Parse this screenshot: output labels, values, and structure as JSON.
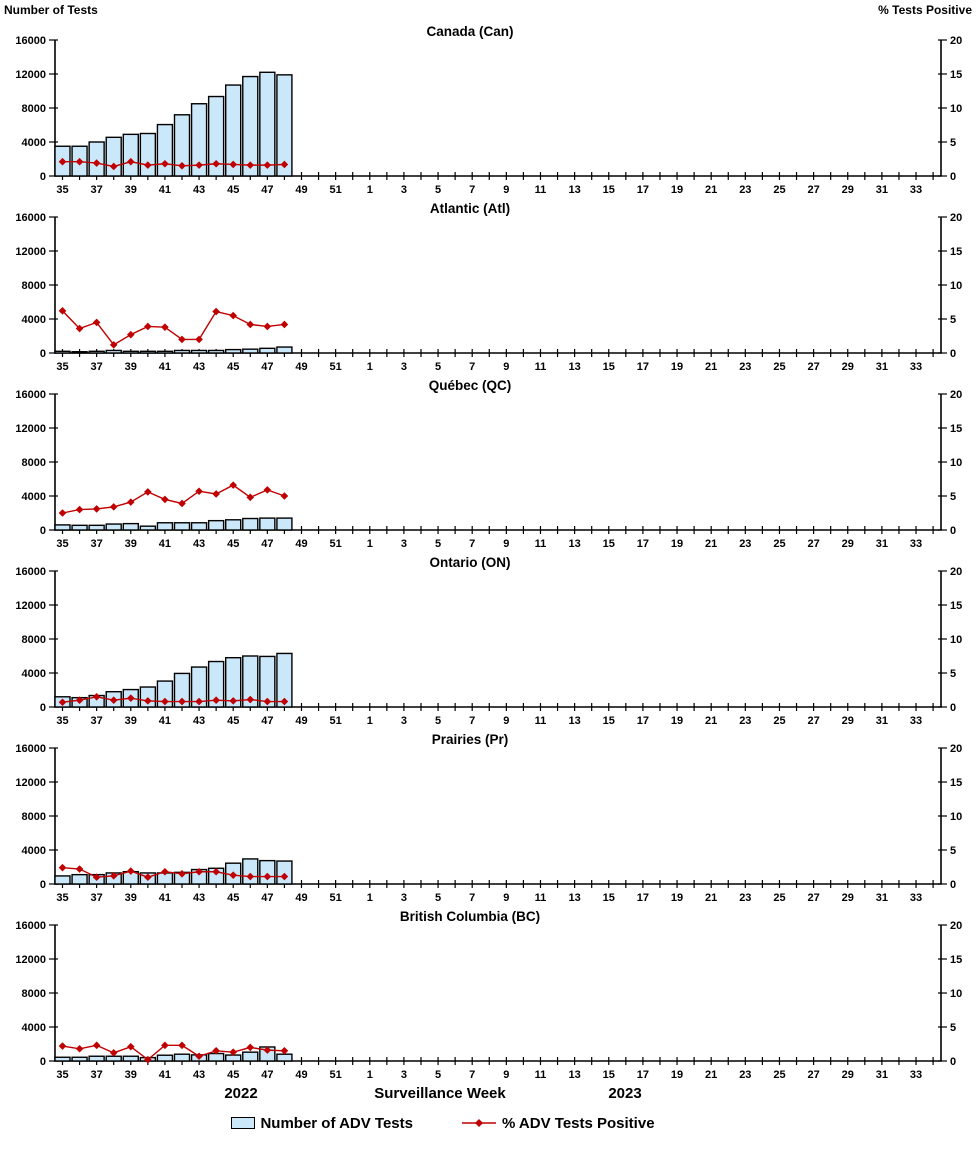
{
  "page": {
    "left_axis_title": "Number of Tests",
    "right_axis_title": "% Tests Positive",
    "x_axis_title": "Surveillance Week",
    "year_left": "2022",
    "year_right": "2023",
    "legend": {
      "bar_label": "Number of ADV Tests",
      "line_label": "% ADV Tests Positive"
    },
    "colors": {
      "bar_fill": "#CBE7FA",
      "bar_border": "#000000",
      "line": "#C00000",
      "text": "#000000"
    }
  },
  "chart_data": {
    "type": "bar",
    "subtype": "bar-plus-line-dual-axis",
    "left_axis": {
      "title": "Number of Tests",
      "ticks": [
        0,
        4000,
        8000,
        12000,
        16000
      ],
      "max": 16000
    },
    "right_axis": {
      "title": "% Tests Positive",
      "ticks": [
        0,
        5,
        10,
        15,
        20
      ],
      "max": 20
    },
    "x": {
      "title": "Surveillance Week",
      "ticks": [
        35,
        36,
        37,
        38,
        39,
        40,
        41,
        42,
        43,
        44,
        45,
        46,
        47,
        48,
        49,
        50,
        51,
        52,
        1,
        2,
        3,
        4,
        5,
        6,
        7,
        8,
        9,
        10,
        11,
        12,
        13,
        14,
        15,
        16,
        17,
        18,
        19,
        20,
        21,
        22,
        23,
        24,
        25,
        26,
        27,
        28,
        29,
        30,
        31,
        32,
        33,
        34
      ],
      "tick_labels": [
        "35",
        "",
        "37",
        "",
        "39",
        "",
        "41",
        "",
        "43",
        "",
        "45",
        "",
        "47",
        "",
        "49",
        "",
        "51",
        "",
        "1",
        "",
        "3",
        "",
        "5",
        "",
        "7",
        "",
        "9",
        "",
        "11",
        "",
        "13",
        "",
        "15",
        "",
        "17",
        "",
        "19",
        "",
        "21",
        "",
        "23",
        "",
        "25",
        "",
        "27",
        "",
        "29",
        "",
        "31",
        "",
        "33",
        ""
      ],
      "data_weeks": [
        35,
        36,
        37,
        38,
        39,
        40,
        41,
        42,
        43,
        44,
        45,
        46,
        47,
        48
      ]
    },
    "series_names": [
      "Number of ADV Tests",
      "% ADV Tests Positive"
    ],
    "panels": [
      {
        "title": "Canada (Can)",
        "tests": [
          3500,
          3500,
          4000,
          4550,
          4900,
          5000,
          6050,
          7200,
          8500,
          9350,
          10700,
          11700,
          12200,
          11900
        ],
        "pct_positive": [
          2.1,
          2.1,
          1.9,
          1.4,
          2.1,
          1.6,
          1.8,
          1.5,
          1.6,
          1.8,
          1.7,
          1.6,
          1.6,
          1.7
        ]
      },
      {
        "title": "Atlantic (Atl)",
        "tests": [
          200,
          150,
          200,
          300,
          200,
          200,
          200,
          300,
          300,
          300,
          400,
          450,
          550,
          700
        ],
        "pct_positive": [
          6.2,
          3.6,
          4.5,
          1.2,
          2.7,
          3.9,
          3.8,
          2.0,
          2.0,
          6.1,
          5.5,
          4.2,
          3.9,
          4.2
        ]
      },
      {
        "title": "Québec (QC)",
        "tests": [
          600,
          550,
          550,
          700,
          750,
          450,
          850,
          850,
          850,
          1100,
          1200,
          1350,
          1400,
          1400
        ],
        "pct_positive": [
          2.5,
          3.0,
          3.1,
          3.4,
          4.1,
          5.6,
          4.5,
          3.9,
          5.7,
          5.3,
          6.6,
          4.8,
          5.9,
          5.0
        ]
      },
      {
        "title": "Ontario (ON)",
        "tests": [
          1200,
          1100,
          1350,
          1800,
          2050,
          2350,
          3050,
          3950,
          4700,
          5350,
          5800,
          6000,
          5950,
          6300
        ],
        "pct_positive": [
          0.7,
          1.0,
          1.5,
          1.0,
          1.3,
          0.9,
          0.8,
          0.8,
          0.8,
          1.0,
          0.9,
          1.1,
          0.8,
          0.8
        ]
      },
      {
        "title": "Prairies (Pr)",
        "tests": [
          950,
          1100,
          1100,
          1300,
          1450,
          1300,
          1300,
          1370,
          1700,
          1850,
          2450,
          2950,
          2750,
          2700
        ],
        "pct_positive": [
          2.4,
          2.2,
          1.0,
          1.2,
          1.9,
          1.0,
          1.8,
          1.5,
          1.8,
          1.8,
          1.3,
          1.1,
          1.1,
          1.1
        ]
      },
      {
        "title": "British Columbia (BC)",
        "tests": [
          440,
          440,
          560,
          560,
          560,
          400,
          680,
          800,
          720,
          880,
          700,
          1040,
          1650,
          800
        ],
        "pct_positive": [
          2.2,
          1.8,
          2.3,
          1.2,
          2.1,
          0.2,
          2.3,
          2.3,
          0.7,
          1.5,
          1.3,
          2.0,
          1.6,
          1.5
        ]
      }
    ]
  }
}
